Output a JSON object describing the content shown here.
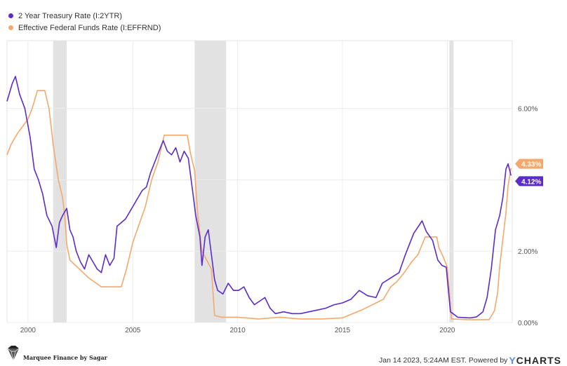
{
  "chart_data": {
    "type": "line",
    "series": [
      {
        "name": "2 Year Treasury Rate (I:2YTR)",
        "color": "#5b2cc9",
        "last_value_label": "4.12%",
        "points": [
          [
            1999.0,
            6.2
          ],
          [
            1999.25,
            6.7
          ],
          [
            1999.4,
            6.9
          ],
          [
            1999.6,
            6.4
          ],
          [
            1999.85,
            6.0
          ],
          [
            2000.1,
            5.2
          ],
          [
            2000.3,
            4.3
          ],
          [
            2000.5,
            4.0
          ],
          [
            2000.7,
            3.6
          ],
          [
            2000.9,
            3.0
          ],
          [
            2001.15,
            2.7
          ],
          [
            2001.35,
            2.1
          ],
          [
            2001.5,
            2.8
          ],
          [
            2001.65,
            3.0
          ],
          [
            2001.85,
            3.2
          ],
          [
            2002.0,
            2.6
          ],
          [
            2002.15,
            2.4
          ],
          [
            2002.3,
            2.0
          ],
          [
            2002.5,
            1.7
          ],
          [
            2002.7,
            1.5
          ],
          [
            2002.9,
            1.9
          ],
          [
            2003.1,
            1.7
          ],
          [
            2003.3,
            1.5
          ],
          [
            2003.5,
            1.4
          ],
          [
            2003.7,
            1.9
          ],
          [
            2003.9,
            1.6
          ],
          [
            2004.1,
            1.8
          ],
          [
            2004.25,
            2.7
          ],
          [
            2004.45,
            2.8
          ],
          [
            2004.65,
            2.9
          ],
          [
            2004.85,
            3.1
          ],
          [
            2005.05,
            3.3
          ],
          [
            2005.25,
            3.5
          ],
          [
            2005.45,
            3.7
          ],
          [
            2005.65,
            3.8
          ],
          [
            2005.85,
            4.2
          ],
          [
            2006.05,
            4.5
          ],
          [
            2006.25,
            4.8
          ],
          [
            2006.45,
            5.1
          ],
          [
            2006.65,
            4.8
          ],
          [
            2006.85,
            4.7
          ],
          [
            2007.05,
            4.9
          ],
          [
            2007.25,
            4.5
          ],
          [
            2007.45,
            4.8
          ],
          [
            2007.65,
            4.6
          ],
          [
            2007.85,
            3.7
          ],
          [
            2008.0,
            3.0
          ],
          [
            2008.2,
            2.4
          ],
          [
            2008.3,
            1.6
          ],
          [
            2008.45,
            2.4
          ],
          [
            2008.6,
            2.6
          ],
          [
            2008.75,
            1.9
          ],
          [
            2008.9,
            1.2
          ],
          [
            2009.05,
            0.9
          ],
          [
            2009.3,
            0.8
          ],
          [
            2009.55,
            1.1
          ],
          [
            2009.8,
            0.9
          ],
          [
            2010.05,
            0.9
          ],
          [
            2010.3,
            1.0
          ],
          [
            2010.55,
            0.7
          ],
          [
            2010.8,
            0.5
          ],
          [
            2011.05,
            0.6
          ],
          [
            2011.3,
            0.7
          ],
          [
            2011.55,
            0.4
          ],
          [
            2011.8,
            0.25
          ],
          [
            2012.2,
            0.3
          ],
          [
            2012.6,
            0.25
          ],
          [
            2013.0,
            0.25
          ],
          [
            2013.4,
            0.3
          ],
          [
            2013.8,
            0.35
          ],
          [
            2014.2,
            0.4
          ],
          [
            2014.6,
            0.5
          ],
          [
            2015.0,
            0.55
          ],
          [
            2015.4,
            0.65
          ],
          [
            2015.8,
            0.9
          ],
          [
            2016.2,
            0.75
          ],
          [
            2016.6,
            0.7
          ],
          [
            2016.9,
            1.1
          ],
          [
            2017.3,
            1.25
          ],
          [
            2017.7,
            1.4
          ],
          [
            2018.0,
            1.9
          ],
          [
            2018.4,
            2.5
          ],
          [
            2018.8,
            2.85
          ],
          [
            2019.0,
            2.55
          ],
          [
            2019.3,
            2.3
          ],
          [
            2019.55,
            1.75
          ],
          [
            2019.75,
            1.6
          ],
          [
            2019.95,
            1.55
          ],
          [
            2020.15,
            0.3
          ],
          [
            2020.5,
            0.15
          ],
          [
            2020.8,
            0.14
          ],
          [
            2021.1,
            0.13
          ],
          [
            2021.4,
            0.16
          ],
          [
            2021.7,
            0.3
          ],
          [
            2021.9,
            0.7
          ],
          [
            2022.1,
            1.5
          ],
          [
            2022.3,
            2.6
          ],
          [
            2022.5,
            3.0
          ],
          [
            2022.65,
            3.5
          ],
          [
            2022.8,
            4.3
          ],
          [
            2022.9,
            4.45
          ],
          [
            2023.04,
            4.12
          ]
        ]
      },
      {
        "name": "Effective Federal Funds Rate (I:EFFRND)",
        "color": "#f5a86b",
        "last_value_label": "4.33%",
        "points": [
          [
            1999.0,
            4.7
          ],
          [
            1999.2,
            5.0
          ],
          [
            1999.5,
            5.3
          ],
          [
            1999.75,
            5.5
          ],
          [
            2000.0,
            5.7
          ],
          [
            2000.2,
            6.0
          ],
          [
            2000.45,
            6.5
          ],
          [
            2000.8,
            6.5
          ],
          [
            2001.0,
            6.0
          ],
          [
            2001.2,
            5.0
          ],
          [
            2001.45,
            4.0
          ],
          [
            2001.65,
            3.5
          ],
          [
            2001.75,
            3.0
          ],
          [
            2001.85,
            2.2
          ],
          [
            2002.0,
            1.75
          ],
          [
            2002.9,
            1.25
          ],
          [
            2003.5,
            1.0
          ],
          [
            2004.0,
            1.0
          ],
          [
            2004.45,
            1.0
          ],
          [
            2004.7,
            1.5
          ],
          [
            2005.0,
            2.25
          ],
          [
            2005.3,
            2.75
          ],
          [
            2005.6,
            3.25
          ],
          [
            2005.9,
            4.0
          ],
          [
            2006.2,
            4.5
          ],
          [
            2006.5,
            5.25
          ],
          [
            2007.6,
            5.25
          ],
          [
            2007.75,
            4.75
          ],
          [
            2007.95,
            4.25
          ],
          [
            2008.1,
            3.0
          ],
          [
            2008.3,
            2.0
          ],
          [
            2008.75,
            1.5
          ],
          [
            2008.9,
            0.2
          ],
          [
            2009.2,
            0.15
          ],
          [
            2010.0,
            0.15
          ],
          [
            2011.0,
            0.1
          ],
          [
            2012.0,
            0.15
          ],
          [
            2013.0,
            0.1
          ],
          [
            2014.0,
            0.1
          ],
          [
            2015.0,
            0.13
          ],
          [
            2015.95,
            0.36
          ],
          [
            2016.95,
            0.65
          ],
          [
            2017.3,
            1.0
          ],
          [
            2017.6,
            1.15
          ],
          [
            2017.95,
            1.4
          ],
          [
            2018.3,
            1.7
          ],
          [
            2018.6,
            1.9
          ],
          [
            2018.95,
            2.4
          ],
          [
            2019.5,
            2.4
          ],
          [
            2019.6,
            2.1
          ],
          [
            2019.8,
            1.85
          ],
          [
            2020.0,
            1.55
          ],
          [
            2020.2,
            0.1
          ],
          [
            2021.0,
            0.08
          ],
          [
            2022.0,
            0.08
          ],
          [
            2022.25,
            0.33
          ],
          [
            2022.4,
            0.83
          ],
          [
            2022.5,
            1.58
          ],
          [
            2022.65,
            2.33
          ],
          [
            2022.8,
            3.08
          ],
          [
            2022.9,
            3.83
          ],
          [
            2023.04,
            4.33
          ]
        ]
      }
    ],
    "recessions": [
      [
        2001.2,
        2001.85
      ],
      [
        2007.95,
        2009.45
      ],
      [
        2020.1,
        2020.3
      ]
    ],
    "x_ticks": [
      {
        "value": 2000,
        "label": "2000"
      },
      {
        "value": 2005,
        "label": "2005"
      },
      {
        "value": 2010,
        "label": "2010"
      },
      {
        "value": 2015,
        "label": "2015"
      },
      {
        "value": 2020,
        "label": "2020"
      }
    ],
    "y_ticks": [
      {
        "value": 0,
        "label": "0.00%"
      },
      {
        "value": 2,
        "label": "2.00%"
      },
      {
        "value": 4,
        "label": ""
      },
      {
        "value": 6,
        "label": "6.00%"
      }
    ],
    "xlim": [
      1999.0,
      2023.1
    ],
    "ylim": [
      0,
      7.9
    ],
    "grid": true,
    "legend_position": "top-left"
  },
  "footer": {
    "logo_text": "Marquee Finance by Sagar",
    "timestamp": "Jan 14 2023, 5:24AM EST.  Powered by",
    "brand_y": "Y",
    "brand_rest": "CHARTS"
  }
}
